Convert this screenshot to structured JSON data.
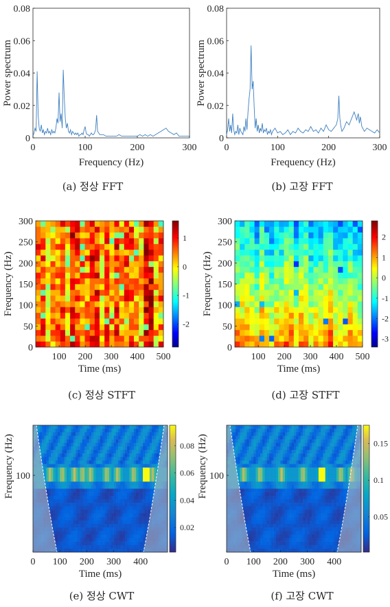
{
  "chart_data": [
    {
      "id": "a",
      "type": "line",
      "caption": "(a)  정상  FFT",
      "xlabel": "Frequency (Hz)",
      "ylabel": "Power spectrum",
      "xlim": [
        0,
        300
      ],
      "ylim": [
        0,
        0.08
      ],
      "xticks": [
        0,
        100,
        200,
        300
      ],
      "yticks": [
        0,
        0.02,
        0.04,
        0.06,
        0.08
      ],
      "xtick_labels": [
        "0",
        "100",
        "200",
        "300"
      ],
      "ytick_labels": [
        "0",
        "0.02",
        "0.04",
        "0.06",
        "0.08"
      ],
      "color": "#3d7fbf",
      "series": [
        {
          "x": [
            0,
            2,
            4,
            6,
            8,
            10,
            12,
            14,
            16,
            18,
            20,
            22,
            24,
            26,
            28,
            30,
            32,
            34,
            36,
            38,
            40,
            42,
            44,
            46,
            48,
            50,
            52,
            54,
            56,
            58,
            60,
            62,
            64,
            66,
            68,
            70,
            72,
            74,
            76,
            78,
            80,
            82,
            84,
            86,
            88,
            90,
            92,
            94,
            96,
            98,
            100,
            102,
            104,
            106,
            108,
            110,
            112,
            114,
            116,
            118,
            120,
            122,
            124,
            126,
            128,
            130,
            135,
            140,
            145,
            150,
            155,
            160,
            165,
            170,
            175,
            180,
            185,
            190,
            195,
            200,
            205,
            210,
            215,
            220,
            225,
            230,
            235,
            240,
            245,
            250,
            255,
            260,
            265,
            270,
            275,
            280,
            285,
            290,
            295,
            300
          ],
          "y": [
            0.001,
            0.003,
            0.006,
            0.004,
            0.041,
            0.014,
            0.006,
            0.004,
            0.008,
            0.003,
            0.005,
            0.002,
            0.004,
            0.003,
            0.006,
            0.003,
            0.004,
            0.002,
            0.005,
            0.003,
            0.004,
            0.003,
            0.006,
            0.012,
            0.009,
            0.028,
            0.01,
            0.015,
            0.006,
            0.042,
            0.025,
            0.012,
            0.006,
            0.009,
            0.004,
            0.003,
            0.005,
            0.002,
            0.004,
            0.003,
            0.002,
            0.003,
            0.002,
            0.003,
            0.001,
            0.002,
            0.002,
            0.003,
            0.002,
            0.005,
            0.007,
            0.003,
            0.002,
            0.002,
            0.001,
            0.002,
            0.003,
            0.002,
            0.002,
            0.003,
            0.005,
            0.014,
            0.004,
            0.003,
            0.002,
            0.002,
            0.002,
            0.001,
            0.001,
            0.001,
            0.001,
            0.001,
            0.002,
            0.001,
            0.001,
            0.001,
            0.001,
            0.001,
            0.001,
            0.001,
            0.002,
            0.001,
            0.002,
            0.001,
            0.002,
            0.001,
            0.002,
            0.003,
            0.004,
            0.005,
            0.006,
            0.004,
            0.003,
            0.002,
            0.003,
            0.001,
            0.001,
            0.001,
            0.001,
            0.001
          ]
        }
      ]
    },
    {
      "id": "b",
      "type": "line",
      "caption": "(b)  고장  FFT",
      "xlabel": "Frequency (Hz)",
      "ylabel": "Power spectrum",
      "xlim": [
        0,
        300
      ],
      "ylim": [
        0,
        0.08
      ],
      "xticks": [
        0,
        100,
        200,
        300
      ],
      "yticks": [
        0,
        0.02,
        0.04,
        0.06,
        0.08
      ],
      "xtick_labels": [
        "0",
        "100",
        "200",
        "300"
      ],
      "ytick_labels": [
        "0",
        "0.02",
        "0.04",
        "0.06",
        "0.08"
      ],
      "color": "#3d7fbf",
      "series": [
        {
          "x": [
            0,
            2,
            4,
            6,
            8,
            10,
            12,
            14,
            16,
            18,
            20,
            22,
            24,
            26,
            28,
            30,
            32,
            34,
            36,
            38,
            40,
            42,
            44,
            46,
            48,
            50,
            52,
            54,
            56,
            58,
            60,
            62,
            64,
            66,
            68,
            70,
            72,
            74,
            76,
            78,
            80,
            82,
            84,
            86,
            88,
            90,
            95,
            100,
            105,
            110,
            115,
            120,
            125,
            130,
            135,
            140,
            145,
            150,
            155,
            160,
            165,
            170,
            175,
            180,
            185,
            190,
            195,
            200,
            205,
            210,
            215,
            218,
            220,
            222,
            224,
            226,
            230,
            235,
            240,
            245,
            250,
            255,
            258,
            260,
            262,
            265,
            270,
            275,
            280,
            285,
            290,
            295,
            300
          ],
          "y": [
            0.002,
            0.005,
            0.012,
            0.004,
            0.008,
            0.003,
            0.015,
            0.005,
            0.002,
            0.004,
            0.003,
            0.008,
            0.002,
            0.006,
            0.004,
            0.003,
            0.002,
            0.007,
            0.004,
            0.012,
            0.005,
            0.016,
            0.024,
            0.03,
            0.057,
            0.03,
            0.035,
            0.02,
            0.006,
            0.012,
            0.004,
            0.008,
            0.003,
            0.006,
            0.004,
            0.009,
            0.003,
            0.005,
            0.004,
            0.006,
            0.002,
            0.004,
            0.003,
            0.005,
            0.002,
            0.004,
            0.006,
            0.003,
            0.004,
            0.002,
            0.003,
            0.005,
            0.002,
            0.004,
            0.003,
            0.006,
            0.004,
            0.003,
            0.005,
            0.004,
            0.007,
            0.004,
            0.005,
            0.003,
            0.006,
            0.004,
            0.008,
            0.005,
            0.004,
            0.006,
            0.008,
            0.012,
            0.026,
            0.012,
            0.007,
            0.004,
            0.006,
            0.01,
            0.008,
            0.012,
            0.016,
            0.011,
            0.015,
            0.009,
            0.013,
            0.007,
            0.004,
            0.006,
            0.005,
            0.004,
            0.003,
            0.005,
            0.003
          ]
        }
      ]
    },
    {
      "id": "c",
      "type": "heatmap",
      "caption": "(c)  정상  STFT",
      "xlabel": "Time (ms)",
      "ylabel": "Frequency (Hz)",
      "xlim": [
        10,
        500
      ],
      "ylim": [
        0,
        300
      ],
      "xticks": [
        100,
        200,
        300,
        400,
        500
      ],
      "yticks": [
        0,
        50,
        100,
        150,
        200,
        250,
        300
      ],
      "xtick_labels": [
        "100",
        "200",
        "300",
        "400",
        "500"
      ],
      "ytick_labels": [
        "0",
        "50",
        "100",
        "150",
        "200",
        "250",
        "300"
      ],
      "colorbar": {
        "range": [
          -2.8,
          1.6
        ],
        "ticks": [
          1,
          0,
          -1,
          -2
        ],
        "tick_labels": [
          "1",
          "0",
          "-1",
          "-2"
        ]
      },
      "seed": 7,
      "base": [
        1.0,
        0.55
      ],
      "noise": 0.55,
      "nx": 26,
      "ny": 22
    },
    {
      "id": "d",
      "type": "heatmap",
      "caption": "(d)  고장  STFT",
      "xlabel": "Time (ms)",
      "ylabel": "Frequency (Hz)",
      "xlim": [
        10,
        500
      ],
      "ylim": [
        0,
        300
      ],
      "xticks": [
        100,
        200,
        300,
        400,
        500
      ],
      "yticks": [
        0,
        50,
        100,
        150,
        200,
        250,
        300
      ],
      "xtick_labels": [
        "100",
        "200",
        "300",
        "400",
        "500"
      ],
      "ytick_labels": [
        "0",
        "50",
        "100",
        "150",
        "200",
        "250",
        "300"
      ],
      "colorbar": {
        "range": [
          -3.4,
          2.8
        ],
        "ticks": [
          2,
          1,
          0,
          -1,
          -2,
          -3
        ],
        "tick_labels": [
          "2",
          "1",
          "0",
          "-1",
          "-2",
          "-3"
        ]
      },
      "seed": 13,
      "base": [
        1.0,
        -0.6
      ],
      "noise": 0.45,
      "nx": 26,
      "ny": 22
    },
    {
      "id": "e",
      "type": "heatmap",
      "caption": "(e)  정상  CWT",
      "xlabel": "Time (ms)",
      "ylabel": "Frequency (Hz)",
      "xlim": [
        0,
        500
      ],
      "xticks": [
        0,
        100,
        200,
        300,
        400
      ],
      "xtick_labels": [
        "0",
        "100",
        "200",
        "300",
        "400"
      ],
      "ytick_labels": [
        "100"
      ],
      "colorbar": {
        "range": [
          0.002,
          0.095
        ],
        "ticks": [
          0.08,
          0.06,
          0.04,
          0.02
        ],
        "tick_labels": [
          "0.08",
          "0.06",
          "0.04",
          "0.02"
        ]
      },
      "seed": 21,
      "peaks": [
        60,
        105,
        150,
        180,
        210,
        270,
        310,
        370,
        440
      ],
      "peak_at": 420
    },
    {
      "id": "f",
      "type": "heatmap",
      "caption": "(f)  고장  CWT",
      "xlabel": "Time (ms)",
      "ylabel": "Frequency (Hz)",
      "xlim": [
        0,
        500
      ],
      "xticks": [
        0,
        100,
        200,
        300,
        400
      ],
      "xtick_labels": [
        "0",
        "100",
        "200",
        "300",
        "400"
      ],
      "ytick_labels": [
        "100"
      ],
      "colorbar": {
        "range": [
          0.002,
          0.175
        ],
        "ticks": [
          0.15,
          0.1,
          0.05
        ],
        "tick_labels": [
          "0.15",
          "0.1",
          "0.05"
        ]
      },
      "seed": 33,
      "peaks": [
        60,
        120,
        200,
        280,
        350,
        420,
        460
      ],
      "peak_at": 350
    }
  ]
}
